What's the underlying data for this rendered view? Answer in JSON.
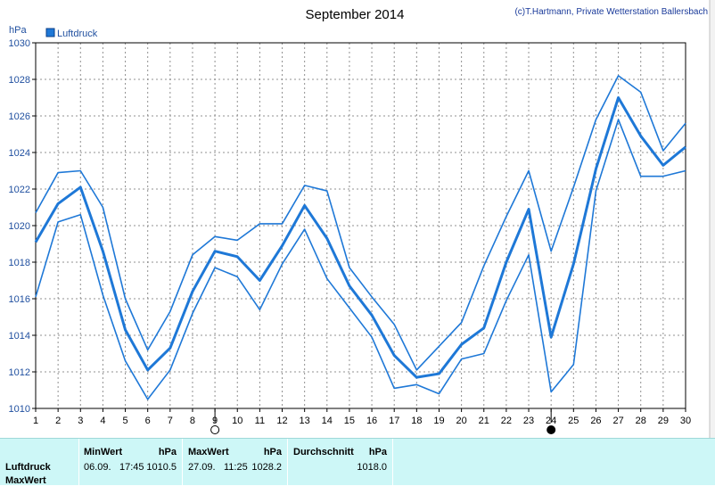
{
  "chart_data": {
    "type": "line",
    "title": "September 2014",
    "copyright": "(c)T.Hartmann, Private Wetterstation Ballersbach",
    "ylabel": "hPa",
    "ylim": [
      1010,
      1030
    ],
    "yticks": [
      1010,
      1012,
      1014,
      1016,
      1018,
      1020,
      1022,
      1024,
      1026,
      1028,
      1030
    ],
    "x": [
      1,
      2,
      3,
      4,
      5,
      6,
      7,
      8,
      9,
      10,
      11,
      12,
      13,
      14,
      15,
      16,
      17,
      18,
      19,
      20,
      21,
      22,
      23,
      24,
      25,
      26,
      27,
      28,
      29,
      30
    ],
    "legend": [
      "Luftdruck"
    ],
    "series": [
      {
        "role": "max",
        "values": [
          1020.7,
          1022.9,
          1023.0,
          1021.0,
          1016.0,
          1013.2,
          1015.3,
          1018.4,
          1019.4,
          1019.2,
          1020.1,
          1020.1,
          1022.2,
          1021.9,
          1017.7,
          1016.1,
          1014.6,
          1012.1,
          1013.4,
          1014.7,
          1017.8,
          1020.5,
          1023.0,
          1018.6,
          1022.1,
          1025.8,
          1028.2,
          1027.3,
          1024.1,
          1025.6
        ]
      },
      {
        "role": "average",
        "name": "Luftdruck",
        "values": [
          1019.1,
          1021.2,
          1022.1,
          1018.6,
          1014.3,
          1012.1,
          1013.3,
          1016.4,
          1018.6,
          1018.3,
          1017.0,
          1018.9,
          1021.1,
          1019.3,
          1016.7,
          1015.1,
          1012.9,
          1011.7,
          1011.9,
          1013.5,
          1014.4,
          1018.0,
          1020.9,
          1013.9,
          1017.9,
          1023.1,
          1027.0,
          1024.9,
          1023.3,
          1024.3
        ]
      },
      {
        "role": "min",
        "values": [
          1016.1,
          1020.2,
          1020.6,
          1016.2,
          1012.6,
          1010.5,
          1012.1,
          1015.2,
          1017.7,
          1017.2,
          1015.4,
          1017.9,
          1019.8,
          1017.1,
          1015.5,
          1013.9,
          1011.1,
          1011.3,
          1010.8,
          1012.7,
          1013.0,
          1015.9,
          1018.4,
          1010.9,
          1012.4,
          1021.9,
          1025.8,
          1022.7,
          1022.7,
          1023.0
        ]
      }
    ],
    "moon_phase_markers": [
      {
        "day": 9,
        "phase": "full"
      },
      {
        "day": 24,
        "phase": "new"
      }
    ],
    "grid": true,
    "legend_position": "top-left"
  },
  "stats": {
    "row_labels": [
      "Luftdruck",
      "MaxWert"
    ],
    "columns": [
      {
        "header": "MinWert",
        "unit": "hPa",
        "date": "06.09.",
        "time": "17:45",
        "value": "1010.5"
      },
      {
        "header": "MaxWert",
        "unit": "hPa",
        "date": "27.09.",
        "time": "11:25",
        "value": "1028.2"
      },
      {
        "header": "Durchschnitt",
        "unit": "hPa",
        "value": "1018.0"
      }
    ]
  },
  "colors": {
    "line": "#1e78d7",
    "grid": "#909090",
    "panel": "#cdf7f7"
  }
}
